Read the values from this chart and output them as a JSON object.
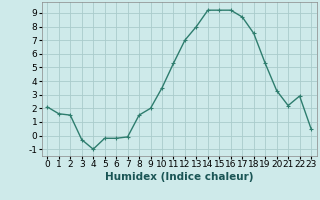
{
  "x": [
    0,
    1,
    2,
    3,
    4,
    5,
    6,
    7,
    8,
    9,
    10,
    11,
    12,
    13,
    14,
    15,
    16,
    17,
    18,
    19,
    20,
    21,
    22,
    23
  ],
  "y": [
    2.1,
    1.6,
    1.5,
    -0.3,
    -1.0,
    -0.2,
    -0.2,
    -0.1,
    1.5,
    2.0,
    3.5,
    5.3,
    7.0,
    8.0,
    9.2,
    9.2,
    9.2,
    8.7,
    7.5,
    5.3,
    3.3,
    2.2,
    2.9,
    0.5
  ],
  "line_color": "#2e7d6e",
  "marker": "+",
  "marker_size": 3,
  "bg_color": "#ceeaea",
  "grid_color": "#aacccc",
  "xlabel": "Humidex (Indice chaleur)",
  "xlim": [
    -0.5,
    23.5
  ],
  "ylim": [
    -1.5,
    9.8
  ],
  "yticks": [
    -1,
    0,
    1,
    2,
    3,
    4,
    5,
    6,
    7,
    8,
    9
  ],
  "xticks": [
    0,
    1,
    2,
    3,
    4,
    5,
    6,
    7,
    8,
    9,
    10,
    11,
    12,
    13,
    14,
    15,
    16,
    17,
    18,
    19,
    20,
    21,
    22,
    23
  ],
  "xlabel_fontsize": 7.5,
  "tick_fontsize": 6.5,
  "linewidth": 1.0
}
